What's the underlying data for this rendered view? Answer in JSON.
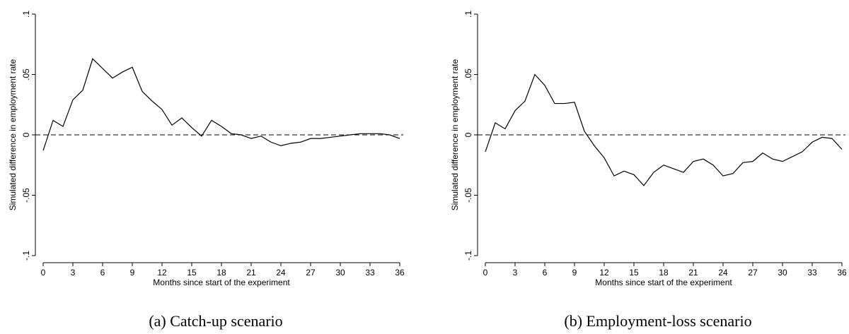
{
  "chart_data": [
    {
      "type": "line",
      "caption": "(a) Catch-up scenario",
      "xlabel": "Months since start of the experiment",
      "ylabel": "Simulated difference in employment rate",
      "x": [
        0,
        1,
        2,
        3,
        4,
        5,
        6,
        7,
        8,
        9,
        10,
        11,
        12,
        13,
        14,
        15,
        16,
        17,
        18,
        19,
        20,
        21,
        22,
        23,
        24,
        25,
        26,
        27,
        28,
        29,
        30,
        31,
        32,
        33,
        34,
        35,
        36
      ],
      "series": [
        {
          "color": "#000000",
          "values": [
            -0.013,
            0.012,
            0.007,
            0.029,
            0.037,
            0.063,
            0.055,
            0.047,
            0.052,
            0.056,
            0.036,
            0.028,
            0.021,
            0.008,
            0.014,
            0.006,
            -0.001,
            0.012,
            0.007,
            0.001,
            0.0,
            -0.003,
            -0.001,
            -0.006,
            -0.009,
            -0.007,
            -0.006,
            -0.003,
            -0.003,
            -0.002,
            -0.001,
            0.0,
            0.001,
            0.001,
            0.001,
            0.0,
            -0.003
          ]
        }
      ],
      "xlim": [
        0,
        36
      ],
      "xticks": [
        0,
        3,
        6,
        9,
        12,
        15,
        18,
        21,
        24,
        27,
        30,
        33,
        36
      ],
      "ylim": [
        -0.1,
        0.1
      ],
      "yticks": [
        {
          "value": -0.1,
          "label": "-.1"
        },
        {
          "value": -0.05,
          "label": "-.05"
        },
        0,
        {
          "value": 0.05,
          "label": ".05"
        },
        {
          "value": 0.1,
          "label": ".1"
        }
      ],
      "refline": 0
    },
    {
      "type": "line",
      "caption": "(b) Employment-loss scenario",
      "xlabel": "Months since start of the experiment",
      "ylabel": "Simulated difference in employment rate",
      "x": [
        0,
        1,
        2,
        3,
        4,
        5,
        6,
        7,
        8,
        9,
        10,
        11,
        12,
        13,
        14,
        15,
        16,
        17,
        18,
        19,
        20,
        21,
        22,
        23,
        24,
        25,
        26,
        27,
        28,
        29,
        30,
        31,
        32,
        33,
        34,
        35,
        36
      ],
      "series": [
        {
          "color": "#000000",
          "values": [
            -0.014,
            0.01,
            0.005,
            0.02,
            0.028,
            0.05,
            0.041,
            0.026,
            0.026,
            0.027,
            0.003,
            -0.009,
            -0.019,
            -0.034,
            -0.03,
            -0.033,
            -0.042,
            -0.031,
            -0.025,
            -0.028,
            -0.031,
            -0.022,
            -0.02,
            -0.025,
            -0.034,
            -0.032,
            -0.023,
            -0.022,
            -0.015,
            -0.02,
            -0.022,
            -0.018,
            -0.014,
            -0.006,
            -0.002,
            -0.003,
            -0.012
          ]
        }
      ],
      "xlim": [
        0,
        36
      ],
      "xticks": [
        0,
        3,
        6,
        9,
        12,
        15,
        18,
        21,
        24,
        27,
        30,
        33,
        36
      ],
      "ylim": [
        -0.1,
        0.1
      ],
      "yticks": [
        {
          "value": -0.1,
          "label": "-.1"
        },
        {
          "value": -0.05,
          "label": "-.05"
        },
        0,
        {
          "value": 0.05,
          "label": ".05"
        },
        {
          "value": 0.1,
          "label": ".1"
        }
      ],
      "refline": 0
    }
  ]
}
